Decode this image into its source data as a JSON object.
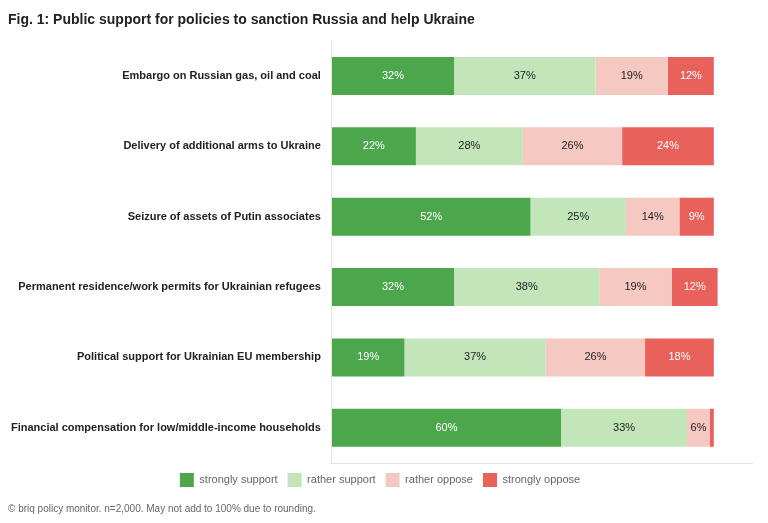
{
  "chart_data": {
    "type": "bar",
    "orientation": "horizontal",
    "stacked": true,
    "title": "Fig. 1: Public support for policies to sanction Russia and help Ukraine",
    "annotations": [
      "© briq policy monitor. n=2,000. May not add to 100% due to rounding."
    ],
    "categories": [
      "Embargo on Russian gas, oil and coal",
      "Delivery of additional arms to Ukraine",
      "Seizure of assets of Putin associates",
      "Permanent residence/work permits for Ukrainian refugees",
      "Political support for Ukrainian EU membership",
      "Financial compensation for low/middle-income households"
    ],
    "series": [
      {
        "name": "strongly support",
        "color": "#4ca64c",
        "values": [
          32,
          22,
          52,
          32,
          19,
          60
        ],
        "value_labels": [
          "32%",
          "22%",
          "52%",
          "32%",
          "19%",
          "60%"
        ]
      },
      {
        "name": "rather support",
        "color": "#c2e6ba",
        "values": [
          37,
          28,
          25,
          38,
          37,
          33
        ],
        "value_labels": [
          "37%",
          "28%",
          "25%",
          "38%",
          "37%",
          "33%"
        ]
      },
      {
        "name": "rather oppose",
        "color": "#f5c8c2",
        "values": [
          19,
          26,
          14,
          19,
          26,
          6
        ],
        "value_labels": [
          "19%",
          "26%",
          "14%",
          "19%",
          "26%",
          "6%"
        ]
      },
      {
        "name": "strongly oppose",
        "color": "#e8615a",
        "values": [
          12,
          24,
          9,
          12,
          18,
          1
        ],
        "value_labels": [
          "12%",
          "24%",
          "9%",
          "12%",
          "18%",
          null
        ]
      }
    ],
    "xlim": [
      0,
      110
    ],
    "grid": false,
    "legend": "bottom",
    "data_labels": true,
    "tick_labels": "y"
  }
}
